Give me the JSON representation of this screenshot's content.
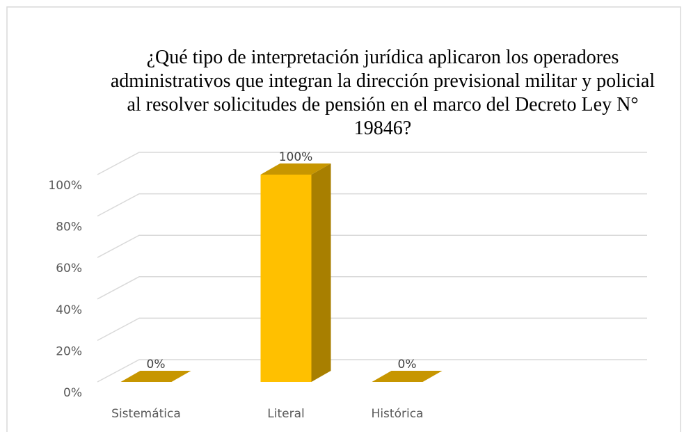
{
  "chart_data": {
    "type": "bar3d",
    "title": "¿Qué tipo de interpretación jurídica aplicaron los operadores administrativos que integran la dirección previsional militar y policial al resolver solicitudes de pensión en el marco del Decreto Ley N° 19846?",
    "categories": [
      "Sistemática",
      "Literal",
      "Histórica"
    ],
    "values": [
      0,
      100,
      0
    ],
    "value_labels": [
      "0%",
      "100%",
      "0%"
    ],
    "color": "#ffc000",
    "ylim": [
      0,
      100
    ],
    "yticks": [
      {
        "value": 0,
        "label": "0%"
      },
      {
        "value": 20,
        "label": "20%"
      },
      {
        "value": 40,
        "label": "40%"
      },
      {
        "value": 60,
        "label": "60%"
      },
      {
        "value": 80,
        "label": "80%"
      },
      {
        "value": 100,
        "label": "100%"
      }
    ],
    "grid": true
  }
}
